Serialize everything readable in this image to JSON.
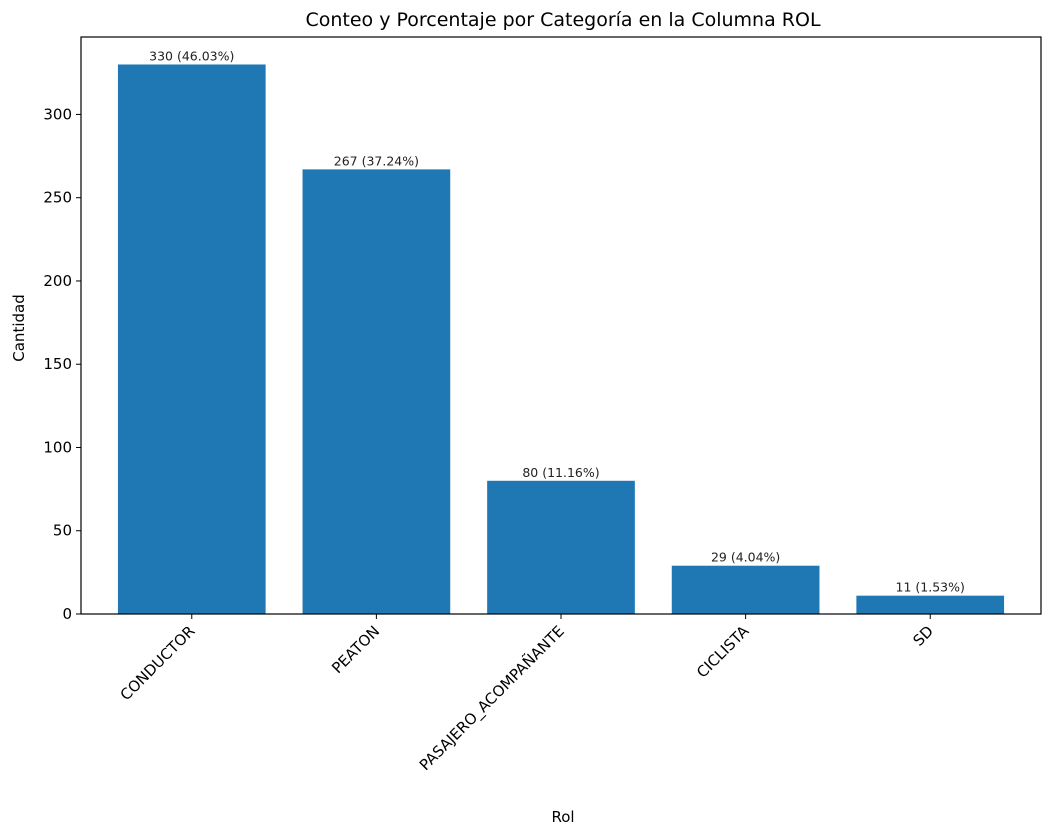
{
  "chart_data": {
    "type": "bar",
    "title": "Conteo y Porcentaje por Categoría en la Columna ROL",
    "xlabel": "Rol",
    "ylabel": "Cantidad",
    "categories": [
      "CONDUCTOR",
      "PEATON",
      "PASAJERO_ACOMPAÑANTE",
      "CICLISTA",
      "SD"
    ],
    "values": [
      330,
      267,
      80,
      29,
      11
    ],
    "data_labels": [
      "330 (46.03%)",
      "267 (37.24%)",
      "80 (11.16%)",
      "29 (4.04%)",
      "11 (1.53%)"
    ],
    "ylim": [
      0,
      346.5
    ],
    "yticks": [
      0,
      50,
      100,
      150,
      200,
      250,
      300
    ],
    "grid": false,
    "colors": {
      "bar": "#1f77b4"
    }
  }
}
